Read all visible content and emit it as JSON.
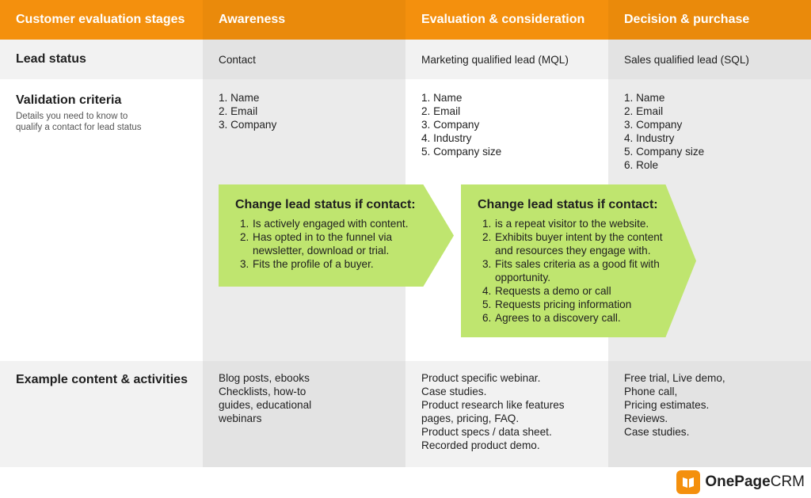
{
  "header": {
    "col0": "Customer evaluation stages",
    "col1": "Awareness",
    "col2": "Evaluation & consideration",
    "col3": "Decision & purchase"
  },
  "lead_status": {
    "label": "Lead status",
    "awareness": "Contact",
    "evaluation": "Marketing qualified lead (MQL)",
    "decision": "Sales qualified lead (SQL)"
  },
  "validation": {
    "label": "Validation criteria",
    "description": "Details you need to know to qualify a contact for lead status",
    "awareness": [
      "1. Name",
      "2. Email",
      "3. Company"
    ],
    "evaluation": [
      "1. Name",
      "2. Email",
      "3. Company",
      "4. Industry",
      "5. Company size"
    ],
    "decision": [
      "1. Name",
      "2. Email",
      "3. Company",
      "4. Industry",
      "5. Company size",
      "6. Role"
    ]
  },
  "arrow1": {
    "title": "Change lead status if contact:",
    "items": [
      {
        "num": "1.",
        "text": "Is actively engaged with content."
      },
      {
        "num": "2.",
        "text": "Has opted in to the funnel via newsletter, download or trial."
      },
      {
        "num": "3.",
        "text": "Fits the profile of a buyer."
      }
    ]
  },
  "arrow2": {
    "title": "Change lead status if contact:",
    "items": [
      {
        "num": "1.",
        "text": "is a repeat visitor to the website."
      },
      {
        "num": "2.",
        "text": "Exhibits buyer intent by the content and resources they engage with."
      },
      {
        "num": "3.",
        "text": "Fits sales criteria as a good fit with opportunity."
      },
      {
        "num": "4.",
        "text": "Requests a demo or call"
      },
      {
        "num": "5.",
        "text": "Requests pricing information"
      },
      {
        "num": "6.",
        "text": "Agrees to a discovery call."
      }
    ]
  },
  "content": {
    "label": "Example content & activities",
    "awareness": [
      "Blog posts, ebooks",
      "Checklists, how-to",
      "guides, educational",
      "webinars"
    ],
    "evaluation": [
      "Product specific webinar.",
      "Case studies.",
      "Product research like features",
      "pages, pricing, FAQ.",
      "Product specs / data sheet.",
      "Recorded product demo."
    ],
    "decision": [
      "Free trial, Live demo,",
      "Phone call,",
      "Pricing estimates.",
      "Reviews.",
      "Case studies."
    ]
  },
  "logo": {
    "bold": "OnePage",
    "light": "CRM"
  },
  "colors": {
    "orange": "#f4900d",
    "green": "#bfe56f",
    "grey": "#ebebeb",
    "lightgrey": "#f2f2f2"
  }
}
